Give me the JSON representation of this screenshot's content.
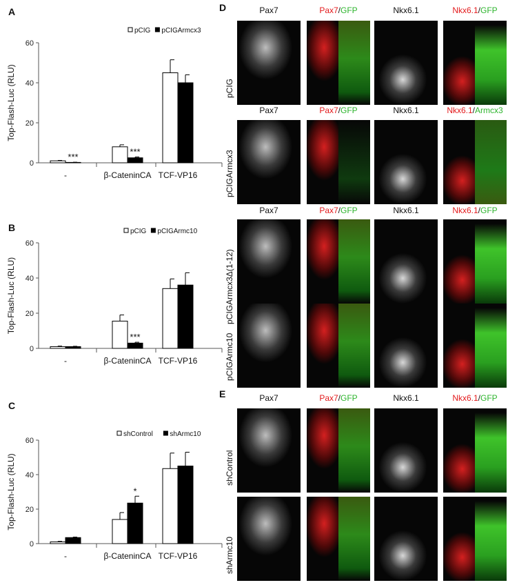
{
  "panels": {
    "A": "A",
    "B": "B",
    "C": "C",
    "D": "D",
    "E": "E"
  },
  "chart_data": [
    {
      "type": "bar",
      "panel": "A",
      "ylabel": "Top-Flash-Luc (RLU)",
      "ylim": [
        0,
        60
      ],
      "yticks": [
        0,
        20,
        40,
        60
      ],
      "categories": [
        "-",
        "β-CateninCA",
        "TCF-VP16"
      ],
      "series": [
        {
          "name": "pCIG",
          "color": "#ffffff",
          "values": [
            1,
            8,
            45
          ],
          "errors": [
            0.2,
            1,
            6.5
          ]
        },
        {
          "name": "pCIGArmcx3",
          "color": "#000000",
          "values": [
            0.2,
            2.5,
            40
          ],
          "errors": [
            0.1,
            0.4,
            4
          ]
        }
      ],
      "annotations": [
        {
          "category": 0,
          "series": 1,
          "text": "***"
        },
        {
          "category": 1,
          "series": 1,
          "text": "***"
        }
      ],
      "legend": "top-right"
    },
    {
      "type": "bar",
      "panel": "B",
      "ylabel": "Top-Flash-Luc (RLU)",
      "ylim": [
        0,
        60
      ],
      "yticks": [
        0,
        20,
        40,
        60
      ],
      "categories": [
        "-",
        "β-CateninCA",
        "TCF-VP16"
      ],
      "series": [
        {
          "name": "pCIG",
          "color": "#ffffff",
          "values": [
            1,
            15.5,
            34
          ],
          "errors": [
            0.3,
            3.5,
            5.5
          ]
        },
        {
          "name": "pCIGArmc10",
          "color": "#000000",
          "values": [
            1,
            3,
            36
          ],
          "errors": [
            0.2,
            0.5,
            7
          ]
        }
      ],
      "annotations": [
        {
          "category": 1,
          "series": 1,
          "text": "***"
        }
      ],
      "legend": "top-right"
    },
    {
      "type": "bar",
      "panel": "C",
      "ylabel": "Top-Flash-Luc (RLU)",
      "ylim": [
        0,
        60
      ],
      "yticks": [
        0,
        20,
        40,
        60
      ],
      "categories": [
        "-",
        "β-CateninCA",
        "TCF-VP16"
      ],
      "series": [
        {
          "name": "shControl",
          "color": "#ffffff",
          "values": [
            1,
            14,
            43.5
          ],
          "errors": [
            0.3,
            4,
            9
          ]
        },
        {
          "name": "shArmc10",
          "color": "#000000",
          "values": [
            3.5,
            23.5,
            45
          ],
          "errors": [
            0.3,
            4,
            8
          ]
        }
      ],
      "annotations": [
        {
          "category": 1,
          "series": 1,
          "text": "*"
        }
      ],
      "legend": "top-right"
    }
  ],
  "micrographs": {
    "D": {
      "rows": [
        {
          "label": "pCIG",
          "headers": [
            [
              "Pax7"
            ],
            [
              "Pax7",
              "/",
              "GFP"
            ],
            [
              "Nkx6.1"
            ],
            [
              "Nkx6.1",
              "/",
              "GFP"
            ]
          ]
        },
        {
          "label": "pCIGArmcx3",
          "headers": [
            [
              "Pax7"
            ],
            [
              "Pax7",
              "/",
              "GFP"
            ],
            [
              "Nkx6.1"
            ],
            [
              "Nkx6.1",
              "/",
              "Armcx3"
            ]
          ]
        },
        {
          "label": "pCIGArmcx3Δ(1-12)",
          "headers": [
            [
              "Pax7"
            ],
            [
              "Pax7",
              "/",
              "GFP"
            ],
            [
              "Nkx6.1"
            ],
            [
              "Nkx6.1",
              "/",
              "GFP"
            ]
          ]
        },
        {
          "label": "pCIGArmc10",
          "headers": null
        }
      ]
    },
    "E": {
      "rows": [
        {
          "label": "shControl",
          "headers": [
            [
              "Pax7"
            ],
            [
              "Pax7",
              "/",
              "GFP"
            ],
            [
              "Nkx6.1"
            ],
            [
              "Nkx6.1",
              "/",
              "GFP"
            ]
          ]
        },
        {
          "label": "shArmc10",
          "headers": null
        }
      ]
    }
  }
}
